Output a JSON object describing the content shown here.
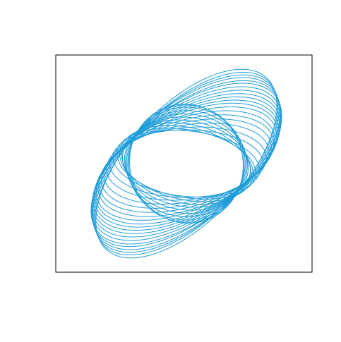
{
  "chart_data": {
    "type": "line",
    "title": "",
    "xlabel": "",
    "ylabel": "",
    "axes_visible": false,
    "grid": false,
    "legend": "none",
    "line_color": "#1f9dd9",
    "xlim": [
      -1.08,
      1.08
    ],
    "ylim": [
      -1.0,
      1.0
    ],
    "series": [
      {
        "rx": 0.5,
        "ry": 0.53,
        "angle_deg": 18
      },
      {
        "rx": 0.51,
        "ry": 0.52,
        "angle_deg": 12
      },
      {
        "rx": 0.52,
        "ry": 0.5,
        "angle_deg": 6
      },
      {
        "rx": 0.53,
        "ry": 0.47,
        "angle_deg": 0
      },
      {
        "rx": 0.54,
        "ry": 0.44,
        "angle_deg": -4
      },
      {
        "rx": 0.55,
        "ry": 0.41,
        "angle_deg": -8
      },
      {
        "rx": 0.57,
        "ry": 0.38,
        "angle_deg": -10
      },
      {
        "rx": 0.58,
        "ry": 0.35,
        "angle_deg": -12
      },
      {
        "rx": 0.6,
        "ry": 0.32,
        "angle_deg": -12
      },
      {
        "rx": 0.62,
        "ry": 0.3,
        "angle_deg": -10
      },
      {
        "rx": 0.65,
        "ry": 0.29,
        "angle_deg": -6
      },
      {
        "rx": 0.68,
        "ry": 0.3,
        "angle_deg": 0
      },
      {
        "rx": 0.71,
        "ry": 0.32,
        "angle_deg": 5
      },
      {
        "rx": 0.74,
        "ry": 0.34,
        "angle_deg": 10
      },
      {
        "rx": 0.77,
        "ry": 0.36,
        "angle_deg": 14
      },
      {
        "rx": 0.8,
        "ry": 0.38,
        "angle_deg": 17
      },
      {
        "rx": 0.82,
        "ry": 0.4,
        "angle_deg": 20
      },
      {
        "rx": 0.85,
        "ry": 0.41,
        "angle_deg": 23
      },
      {
        "rx": 0.87,
        "ry": 0.43,
        "angle_deg": 25
      },
      {
        "rx": 0.89,
        "ry": 0.44,
        "angle_deg": 27
      },
      {
        "rx": 0.91,
        "ry": 0.45,
        "angle_deg": 29
      },
      {
        "rx": 0.93,
        "ry": 0.46,
        "angle_deg": 31
      },
      {
        "rx": 0.95,
        "ry": 0.47,
        "angle_deg": 33
      },
      {
        "rx": 0.97,
        "ry": 0.48,
        "angle_deg": 35
      },
      {
        "rx": 0.99,
        "ry": 0.49,
        "angle_deg": 37
      },
      {
        "rx": 1.0,
        "ry": 0.49,
        "angle_deg": 39
      },
      {
        "rx": 1.01,
        "ry": 0.5,
        "angle_deg": 41
      },
      {
        "rx": 1.02,
        "ry": 0.5,
        "angle_deg": 43
      },
      {
        "rx": 1.03,
        "ry": 0.5,
        "angle_deg": 45
      },
      {
        "rx": 1.04,
        "ry": 0.51,
        "angle_deg": 47
      }
    ]
  }
}
